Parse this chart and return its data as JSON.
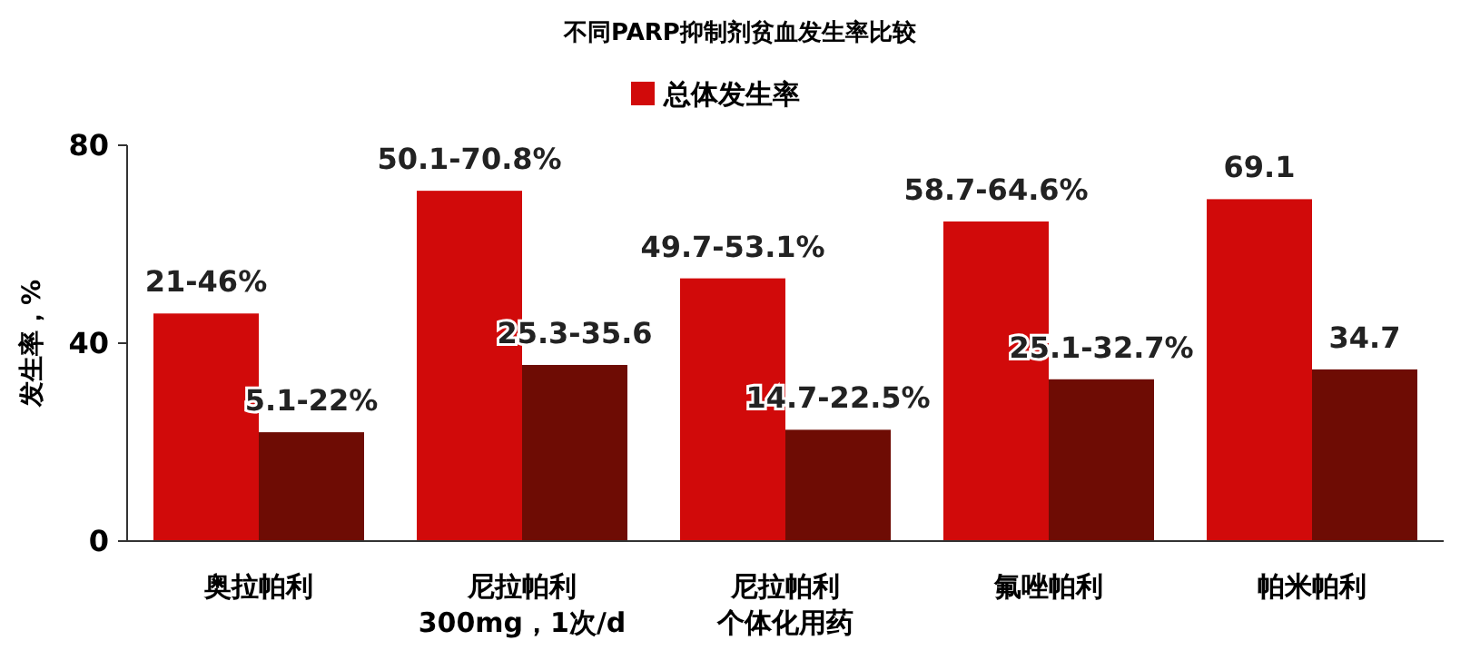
{
  "chart_data": {
    "type": "bar",
    "title": "不同PARP抑制剂贫血发生率比较",
    "ylabel": "发生率，%",
    "categories": [
      "奥拉帕利",
      "尼拉帕利\n300mg，1次/d",
      "尼拉帕利个体化用药",
      "氟唑帕利",
      "帕米帕利"
    ],
    "series": [
      {
        "name": "总体发生率",
        "color": "#d10a0a",
        "values": [
          46,
          70.8,
          53.1,
          64.6,
          69.1
        ],
        "value_labels": [
          null,
          null,
          null,
          null,
          "69.1"
        ]
      },
      {
        "color": "#6e0c04",
        "values": [
          22,
          35.6,
          22.5,
          32.7,
          34.7
        ],
        "value_labels": [
          null,
          null,
          null,
          null,
          "34.7"
        ]
      }
    ],
    "annotations": [
      {
        "text": "21-46%",
        "x": "奥拉帕利",
        "y": 46
      },
      {
        "text": "50.1-70.8%",
        "x": "尼拉帕利\n300mg，1次/d",
        "y": 70.8
      },
      {
        "text": "49.7-53.1%",
        "x": "尼拉帕利个体化用药",
        "y": 53.1
      },
      {
        "text": "58.7-64.6%",
        "x": "氟唑帕利",
        "y": 64.6
      },
      {
        "text": "5.1-22%",
        "x": "奥拉帕利",
        "y": 22
      },
      {
        "text": "25.3-35.6",
        "x": "尼拉帕利\n300mg，1次/d",
        "y": 35.6
      },
      {
        "text": "14.7-22.5%",
        "x": "尼拉帕利个体化用药",
        "y": 22.5
      },
      {
        "text": "25.1-32.7%",
        "x": "氟唑帕利",
        "y": 32.7
      }
    ],
    "ylim": [
      0,
      80
    ],
    "yticks": [
      0,
      40,
      80
    ],
    "legend": "top",
    "grid": false
  }
}
